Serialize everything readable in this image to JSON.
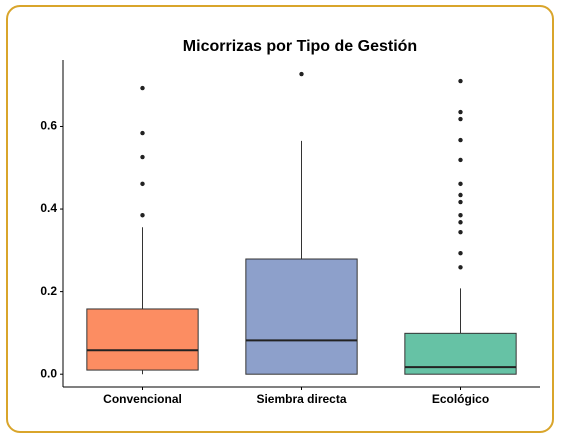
{
  "chart_data": {
    "type": "box",
    "title": "Micorrizas por Tipo de Gestión",
    "categories": [
      "Convencional",
      "Siembra directa",
      "Ecológico"
    ],
    "colors": [
      "#fc8d62",
      "#8da0cb",
      "#66c2a5"
    ],
    "boxes": [
      {
        "min": 0,
        "q1": 0.01,
        "median": 0.058,
        "q3": 0.158,
        "max": 0.356,
        "outliers": [
          0.693,
          0.584,
          0.526,
          0.461,
          0.385
        ]
      },
      {
        "min": 0,
        "q1": 0,
        "median": 0.082,
        "q3": 0.279,
        "max": 0.565,
        "outliers": [
          0.727
        ]
      },
      {
        "min": 0,
        "q1": 0,
        "median": 0.017,
        "q3": 0.099,
        "max": 0.208,
        "outliers": [
          0.71,
          0.635,
          0.618,
          0.567,
          0.519,
          0.461,
          0.434,
          0.417,
          0.385,
          0.368,
          0.344,
          0.293,
          0.259
        ]
      }
    ],
    "ylim": [
      -0.031,
      0.761
    ],
    "yticks": [
      {
        "value": 0,
        "label": "0.0"
      },
      0.2,
      0.4,
      0.6
    ]
  }
}
